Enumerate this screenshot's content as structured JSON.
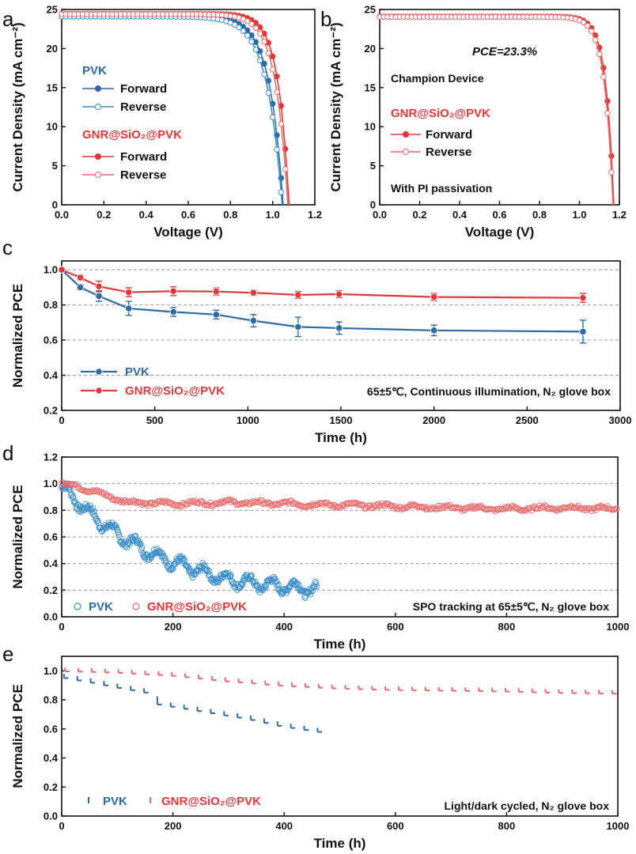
{
  "colors": {
    "blue": "#2f6aa3",
    "red": "#e0383b",
    "blue_light": "#3d8ec9",
    "red_light": "#e86a6a"
  },
  "chart_data": [
    {
      "panel": "a",
      "type": "line",
      "xlabel": "Voltage (V)",
      "ylabel": "Current Density (mA cm⁻²)",
      "xlim": [
        0,
        1.2
      ],
      "ylim": [
        0,
        25
      ],
      "xticks": [
        "0.0",
        "0.2",
        "0.4",
        "0.6",
        "0.8",
        "1.0",
        "1.2"
      ],
      "yticks": [
        "0",
        "5",
        "10",
        "15",
        "20",
        "25"
      ],
      "groups": [
        {
          "title": "PVK",
          "entries": [
            "Forward",
            "Reverse"
          ]
        },
        {
          "title": "GNR@SiO₂@PVK",
          "entries": [
            "Forward",
            "Reverse"
          ]
        }
      ],
      "series": [
        {
          "name": "PVK Forward",
          "jsc": 24.1,
          "voc": 1.05,
          "n": 0.065
        },
        {
          "name": "PVK Reverse",
          "jsc": 24.1,
          "voc": 1.045,
          "n": 0.072
        },
        {
          "name": "GNR@SiO₂@PVK Forward",
          "jsc": 24.45,
          "voc": 1.078,
          "n": 0.052
        },
        {
          "name": "GNR@SiO₂@PVK Reverse",
          "jsc": 24.4,
          "voc": 1.072,
          "n": 0.058
        }
      ]
    },
    {
      "panel": "b",
      "type": "line",
      "xlabel": "Voltage (V)",
      "ylabel": "Current Density (mA cm⁻²)",
      "xlim": [
        0,
        1.2
      ],
      "ylim": [
        0,
        25
      ],
      "xticks": [
        "0.0",
        "0.2",
        "0.4",
        "0.6",
        "0.8",
        "1.0",
        "1.2"
      ],
      "yticks": [
        "0",
        "5",
        "10",
        "15",
        "20",
        "25"
      ],
      "annotations": [
        "PCE=23.3%",
        "Champion Device",
        "With PI passivation"
      ],
      "groups": [
        {
          "title": "GNR@SiO₂@PVK",
          "entries": [
            "Forward",
            "Reverse"
          ]
        }
      ],
      "series": [
        {
          "name": "Forward",
          "jsc": 24.1,
          "voc": 1.172,
          "n": 0.04
        },
        {
          "name": "Reverse",
          "jsc": 24.05,
          "voc": 1.168,
          "n": 0.042
        }
      ]
    },
    {
      "panel": "c",
      "type": "line",
      "xlabel": "Time (h)",
      "ylabel": "Normalized PCE",
      "xlim": [
        0,
        3000
      ],
      "ylim": [
        0.2,
        1.05
      ],
      "xticks": [
        "0",
        "500",
        "1000",
        "1500",
        "2000",
        "2500",
        "3000"
      ],
      "yticks": [
        "0.2",
        "0.4",
        "0.6",
        "0.8",
        "1.0"
      ],
      "annotation": "65±5℃, Continuous illumination, N₂ glove box",
      "series": [
        {
          "name": "PVK",
          "x": [
            0,
            100,
            200,
            360,
            600,
            830,
            1030,
            1270,
            1490,
            2000,
            2800
          ],
          "y": [
            1.0,
            0.9,
            0.85,
            0.78,
            0.76,
            0.745,
            0.71,
            0.675,
            0.668,
            0.655,
            0.648
          ],
          "err": [
            0.01,
            0.015,
            0.03,
            0.04,
            0.025,
            0.025,
            0.035,
            0.055,
            0.035,
            0.03,
            0.065
          ]
        },
        {
          "name": "GNR@SiO₂@PVK",
          "x": [
            0,
            100,
            200,
            360,
            600,
            830,
            1030,
            1270,
            1490,
            2000,
            2800
          ],
          "y": [
            1.0,
            0.955,
            0.905,
            0.872,
            0.878,
            0.876,
            0.869,
            0.857,
            0.861,
            0.845,
            0.84
          ],
          "err": [
            0.01,
            0.015,
            0.03,
            0.025,
            0.025,
            0.02,
            0.015,
            0.02,
            0.02,
            0.02,
            0.025
          ]
        }
      ]
    },
    {
      "panel": "d",
      "type": "scatter",
      "xlabel": "Time (h)",
      "ylabel": "Normalized PCE",
      "xlim": [
        0,
        1000
      ],
      "ylim": [
        0,
        1.2
      ],
      "xticks": [
        "0",
        "200",
        "400",
        "600",
        "800",
        "1000"
      ],
      "yticks": [
        "0.0",
        "0.2",
        "0.4",
        "0.6",
        "0.8",
        "1.0",
        "1.2"
      ],
      "annotation": "SPO tracking at 65±5℃, N₂ glove box",
      "series": [
        {
          "name": "PVK",
          "x": [
            0,
            20,
            50,
            100,
            150,
            200,
            250,
            300,
            350,
            400,
            460
          ],
          "y": [
            0.97,
            0.9,
            0.78,
            0.62,
            0.5,
            0.41,
            0.34,
            0.28,
            0.25,
            0.23,
            0.2
          ]
        },
        {
          "name": "GNR@SiO₂@PVK",
          "x": [
            0,
            30,
            80,
            120,
            200,
            300,
            400,
            500,
            600,
            700,
            800,
            900,
            1000
          ],
          "y": [
            1.0,
            0.98,
            0.91,
            0.86,
            0.85,
            0.86,
            0.85,
            0.84,
            0.83,
            0.82,
            0.81,
            0.82,
            0.81
          ]
        }
      ]
    },
    {
      "panel": "e",
      "type": "line",
      "xlabel": "Time (h)",
      "ylabel": "Normalized PCE",
      "xlim": [
        0,
        1000
      ],
      "ylim": [
        0,
        1.1
      ],
      "xticks": [
        "0",
        "200",
        "400",
        "600",
        "800",
        "1000"
      ],
      "yticks": [
        "0.0",
        "0.2",
        "0.4",
        "0.6",
        "0.8",
        "1.0"
      ],
      "annotation": "Light/dark cycled, N₂ glove box",
      "cycle_h": 24,
      "series": [
        {
          "name": "PVK",
          "x": [
            0,
            60,
            100,
            160,
            180,
            260,
            340,
            400,
            470
          ],
          "y": [
            0.97,
            0.93,
            0.9,
            0.86,
            0.78,
            0.73,
            0.68,
            0.63,
            0.59
          ]
        },
        {
          "name": "GNR@SiO₂@PVK",
          "x": [
            0,
            100,
            200,
            300,
            400,
            500,
            600,
            700,
            800,
            900,
            1000
          ],
          "y": [
            1.01,
            1.0,
            0.98,
            0.94,
            0.91,
            0.89,
            0.88,
            0.875,
            0.87,
            0.86,
            0.855
          ]
        }
      ]
    }
  ]
}
